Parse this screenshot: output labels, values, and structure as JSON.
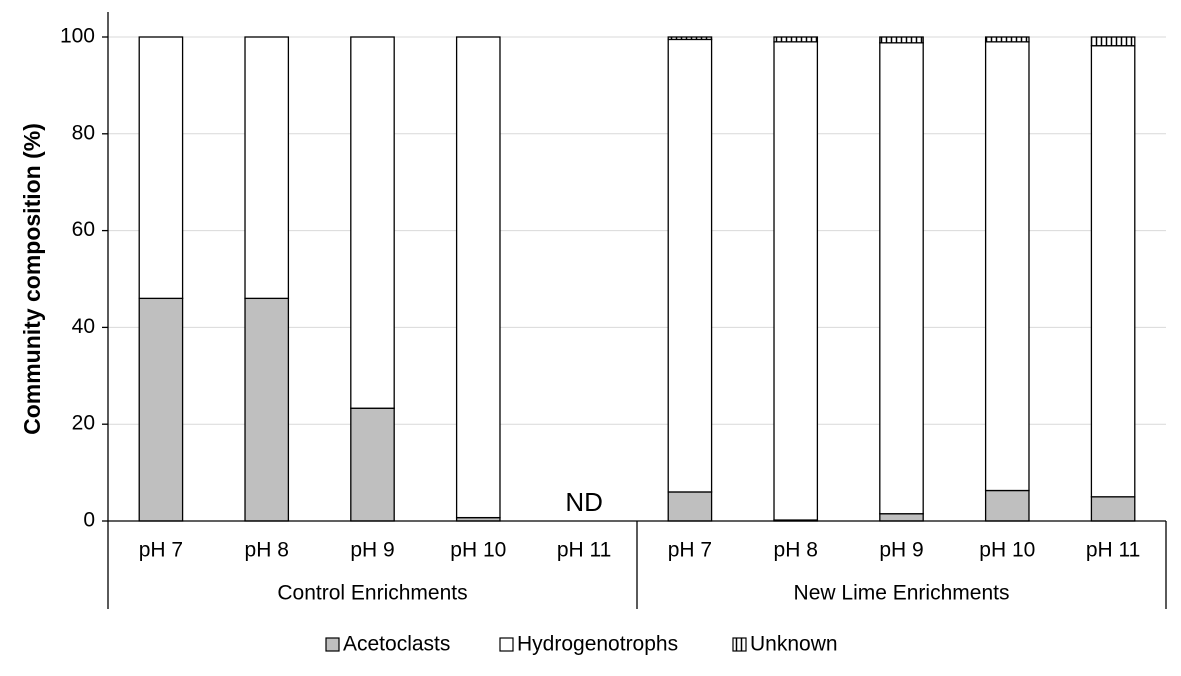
{
  "chart_data": {
    "type": "bar",
    "stacked": true,
    "ylabel": "Community composition (%)",
    "ylim": [
      0,
      100
    ],
    "yticks": [
      0,
      20,
      40,
      60,
      80,
      100
    ],
    "grid": true,
    "groups": [
      {
        "label": "Control Enrichments",
        "categories": [
          "pH 7",
          "pH 8",
          "pH 9",
          "pH 10",
          "pH 11"
        ]
      },
      {
        "label": "New Lime Enrichments",
        "categories": [
          "pH 7",
          "pH 8",
          "pH 9",
          "pH 10",
          "pH 11"
        ]
      }
    ],
    "series": [
      {
        "name": "Acetoclasts",
        "pattern": "solid-gray",
        "color": "#bfbfbf",
        "values": [
          46,
          46,
          23.3,
          0.7,
          null,
          6,
          0.2,
          1.5,
          6.3,
          5
        ]
      },
      {
        "name": "Hydrogenotrophs",
        "pattern": "white",
        "color": "#ffffff",
        "values": [
          54,
          54,
          76.7,
          99.3,
          null,
          93.5,
          98.8,
          97.3,
          92.7,
          93.2
        ]
      },
      {
        "name": "Unknown",
        "pattern": "vertical-hatch",
        "color": "#000000",
        "values": [
          0,
          0,
          0,
          0,
          null,
          0.5,
          1.0,
          1.2,
          1.0,
          1.8
        ]
      }
    ],
    "annotations": [
      {
        "text": "ND",
        "category_index": 4
      }
    ],
    "legend": {
      "position": "bottom",
      "labels": [
        "Acetoclasts",
        "Hydrogenotrophs",
        "Unknown"
      ]
    }
  }
}
